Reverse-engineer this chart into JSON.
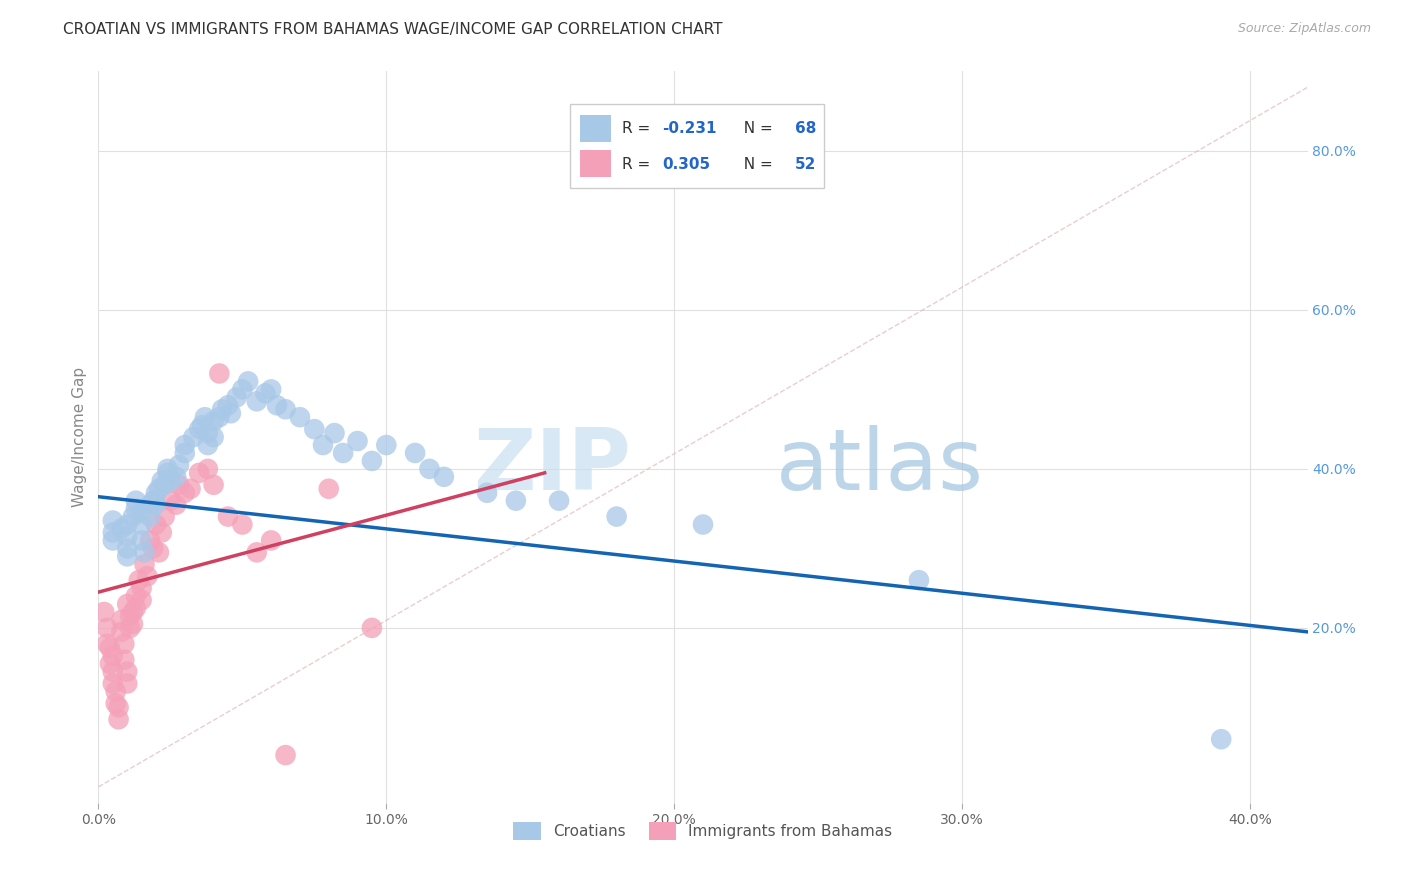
{
  "title": "CROATIAN VS IMMIGRANTS FROM BAHAMAS WAGE/INCOME GAP CORRELATION CHART",
  "source": "Source: ZipAtlas.com",
  "ylabel": "Wage/Income Gap",
  "xlim": [
    0.0,
    0.42
  ],
  "ylim": [
    -0.02,
    0.9
  ],
  "yticks_right": [
    0.2,
    0.4,
    0.6,
    0.8
  ],
  "right_yticklabels": [
    "20.0%",
    "40.0%",
    "60.0%",
    "80.0%"
  ],
  "xtick_vals": [
    0.0,
    0.1,
    0.2,
    0.3,
    0.4
  ],
  "xticklabels": [
    "0.0%",
    "10.0%",
    "20.0%",
    "30.0%",
    "40.0%"
  ],
  "blue_color": "#a8c8e8",
  "pink_color": "#f4a0b8",
  "blue_line_color": "#1464b4",
  "pink_line_color": "#d04060",
  "legend_blue_label": "Croatians",
  "legend_pink_label": "Immigrants from Bahamas",
  "watermark_zip": "ZIP",
  "watermark_atlas": "atlas",
  "background_color": "#ffffff",
  "grid_color": "#e0e0e0",
  "blue_trend": [
    0.0,
    0.42,
    0.365,
    0.195
  ],
  "pink_trend": [
    0.0,
    0.155,
    0.245,
    0.395
  ],
  "blue_scatter_x": [
    0.005,
    0.005,
    0.005,
    0.008,
    0.01,
    0.01,
    0.01,
    0.01,
    0.012,
    0.013,
    0.013,
    0.015,
    0.015,
    0.015,
    0.016,
    0.018,
    0.018,
    0.019,
    0.02,
    0.02,
    0.021,
    0.022,
    0.023,
    0.024,
    0.024,
    0.025,
    0.027,
    0.028,
    0.03,
    0.03,
    0.033,
    0.035,
    0.036,
    0.037,
    0.038,
    0.038,
    0.04,
    0.04,
    0.042,
    0.043,
    0.045,
    0.046,
    0.048,
    0.05,
    0.052,
    0.055,
    0.058,
    0.06,
    0.062,
    0.065,
    0.07,
    0.075,
    0.078,
    0.082,
    0.085,
    0.09,
    0.095,
    0.1,
    0.11,
    0.115,
    0.12,
    0.135,
    0.145,
    0.16,
    0.18,
    0.21,
    0.285,
    0.39
  ],
  "blue_scatter_y": [
    0.335,
    0.32,
    0.31,
    0.325,
    0.33,
    0.315,
    0.3,
    0.29,
    0.34,
    0.35,
    0.36,
    0.345,
    0.33,
    0.31,
    0.295,
    0.355,
    0.34,
    0.36,
    0.37,
    0.355,
    0.375,
    0.385,
    0.38,
    0.395,
    0.4,
    0.385,
    0.39,
    0.405,
    0.43,
    0.42,
    0.44,
    0.45,
    0.455,
    0.465,
    0.445,
    0.43,
    0.44,
    0.46,
    0.465,
    0.475,
    0.48,
    0.47,
    0.49,
    0.5,
    0.51,
    0.485,
    0.495,
    0.5,
    0.48,
    0.475,
    0.465,
    0.45,
    0.43,
    0.445,
    0.42,
    0.435,
    0.41,
    0.43,
    0.42,
    0.4,
    0.39,
    0.37,
    0.36,
    0.36,
    0.34,
    0.33,
    0.26,
    0.06
  ],
  "pink_scatter_x": [
    0.002,
    0.003,
    0.003,
    0.004,
    0.004,
    0.005,
    0.005,
    0.005,
    0.006,
    0.006,
    0.007,
    0.007,
    0.008,
    0.008,
    0.009,
    0.009,
    0.01,
    0.01,
    0.01,
    0.011,
    0.011,
    0.012,
    0.012,
    0.013,
    0.013,
    0.014,
    0.015,
    0.015,
    0.016,
    0.017,
    0.018,
    0.019,
    0.02,
    0.021,
    0.022,
    0.023,
    0.025,
    0.027,
    0.028,
    0.03,
    0.032,
    0.035,
    0.038,
    0.04,
    0.042,
    0.045,
    0.05,
    0.055,
    0.06,
    0.065,
    0.08,
    0.095
  ],
  "pink_scatter_y": [
    0.22,
    0.2,
    0.18,
    0.175,
    0.155,
    0.165,
    0.145,
    0.13,
    0.12,
    0.105,
    0.1,
    0.085,
    0.21,
    0.195,
    0.18,
    0.16,
    0.145,
    0.13,
    0.23,
    0.215,
    0.2,
    0.22,
    0.205,
    0.24,
    0.225,
    0.26,
    0.25,
    0.235,
    0.28,
    0.265,
    0.31,
    0.3,
    0.33,
    0.295,
    0.32,
    0.34,
    0.36,
    0.355,
    0.38,
    0.37,
    0.375,
    0.395,
    0.4,
    0.38,
    0.52,
    0.34,
    0.33,
    0.295,
    0.31,
    0.04,
    0.375,
    0.2
  ]
}
